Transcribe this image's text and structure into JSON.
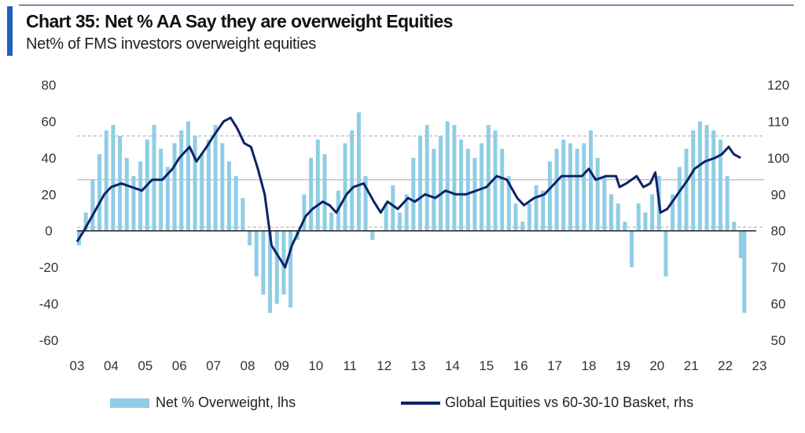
{
  "header": {
    "title": "Chart 35: Net % AA Say they are overweight Equities",
    "subtitle": "Net% of FMS investors overweight equities"
  },
  "colors": {
    "accent": "#1f5fbf",
    "bars": "#8fcde6",
    "line": "#0c2367",
    "grid": "#aaaaaa",
    "axis": "#222222"
  },
  "chart_data": {
    "type": "bar+line",
    "title": "Chart 35: Net % AA Say they are overweight Equities",
    "subtitle": "Net% of FMS investors overweight equities",
    "x_labels": [
      "03",
      "04",
      "05",
      "06",
      "07",
      "08",
      "09",
      "10",
      "11",
      "12",
      "13",
      "14",
      "15",
      "16",
      "17",
      "18",
      "19",
      "20",
      "21",
      "22",
      "23"
    ],
    "x_start_year": 2003,
    "y_left": {
      "min": -60,
      "max": 80,
      "ticks": [
        "80",
        "60",
        "40",
        "20",
        "0",
        "-20",
        "-40",
        "-60"
      ],
      "label": "lhs"
    },
    "y_right": {
      "min": 50,
      "max": 120,
      "ticks": [
        "120",
        "110",
        "100",
        "90",
        "80",
        "70",
        "60",
        "50"
      ],
      "label": "rhs"
    },
    "reference_lines_lhs": [
      {
        "value": 52,
        "style": "dashed"
      },
      {
        "value": 28,
        "style": "solid"
      },
      {
        "value": 2,
        "style": "dashed"
      }
    ],
    "series": [
      {
        "name": "Net % Overweight, lhs",
        "type": "bar",
        "axis": "left",
        "points": [
          [
            2003.0,
            -8
          ],
          [
            2003.2,
            10
          ],
          [
            2003.4,
            28
          ],
          [
            2003.6,
            42
          ],
          [
            2003.8,
            55
          ],
          [
            2004.0,
            58
          ],
          [
            2004.2,
            52
          ],
          [
            2004.4,
            40
          ],
          [
            2004.6,
            30
          ],
          [
            2004.8,
            38
          ],
          [
            2005.0,
            50
          ],
          [
            2005.2,
            58
          ],
          [
            2005.4,
            45
          ],
          [
            2005.6,
            35
          ],
          [
            2005.8,
            48
          ],
          [
            2006.0,
            55
          ],
          [
            2006.2,
            60
          ],
          [
            2006.4,
            52
          ],
          [
            2006.6,
            42
          ],
          [
            2006.8,
            50
          ],
          [
            2007.0,
            58
          ],
          [
            2007.2,
            48
          ],
          [
            2007.4,
            38
          ],
          [
            2007.6,
            30
          ],
          [
            2007.8,
            18
          ],
          [
            2008.0,
            -8
          ],
          [
            2008.2,
            -25
          ],
          [
            2008.4,
            -35
          ],
          [
            2008.6,
            -45
          ],
          [
            2008.8,
            -40
          ],
          [
            2009.0,
            -35
          ],
          [
            2009.2,
            -42
          ],
          [
            2009.4,
            -5
          ],
          [
            2009.6,
            20
          ],
          [
            2009.8,
            40
          ],
          [
            2010.0,
            50
          ],
          [
            2010.2,
            42
          ],
          [
            2010.4,
            10
          ],
          [
            2010.6,
            22
          ],
          [
            2010.8,
            48
          ],
          [
            2011.0,
            55
          ],
          [
            2011.2,
            65
          ],
          [
            2011.4,
            30
          ],
          [
            2011.6,
            -5
          ],
          [
            2011.8,
            0
          ],
          [
            2012.0,
            15
          ],
          [
            2012.2,
            25
          ],
          [
            2012.4,
            10
          ],
          [
            2012.6,
            20
          ],
          [
            2012.8,
            40
          ],
          [
            2013.0,
            52
          ],
          [
            2013.2,
            58
          ],
          [
            2013.4,
            45
          ],
          [
            2013.6,
            52
          ],
          [
            2013.8,
            60
          ],
          [
            2014.0,
            58
          ],
          [
            2014.2,
            50
          ],
          [
            2014.4,
            45
          ],
          [
            2014.6,
            40
          ],
          [
            2014.8,
            48
          ],
          [
            2015.0,
            58
          ],
          [
            2015.2,
            55
          ],
          [
            2015.4,
            45
          ],
          [
            2015.6,
            30
          ],
          [
            2015.8,
            15
          ],
          [
            2016.0,
            5
          ],
          [
            2016.2,
            15
          ],
          [
            2016.4,
            25
          ],
          [
            2016.6,
            22
          ],
          [
            2016.8,
            38
          ],
          [
            2017.0,
            45
          ],
          [
            2017.2,
            50
          ],
          [
            2017.4,
            48
          ],
          [
            2017.6,
            45
          ],
          [
            2017.8,
            48
          ],
          [
            2018.0,
            55
          ],
          [
            2018.2,
            40
          ],
          [
            2018.4,
            30
          ],
          [
            2018.6,
            20
          ],
          [
            2018.8,
            15
          ],
          [
            2019.0,
            5
          ],
          [
            2019.2,
            -20
          ],
          [
            2019.4,
            15
          ],
          [
            2019.6,
            10
          ],
          [
            2019.8,
            20
          ],
          [
            2020.0,
            30
          ],
          [
            2020.2,
            -25
          ],
          [
            2020.4,
            20
          ],
          [
            2020.6,
            35
          ],
          [
            2020.8,
            45
          ],
          [
            2021.0,
            55
          ],
          [
            2021.2,
            60
          ],
          [
            2021.4,
            58
          ],
          [
            2021.6,
            55
          ],
          [
            2021.8,
            50
          ],
          [
            2022.0,
            30
          ],
          [
            2022.2,
            5
          ],
          [
            2022.4,
            -15
          ],
          [
            2022.5,
            -45
          ]
        ]
      },
      {
        "name": "Global Equities vs 60-30-10 Basket, rhs",
        "type": "line",
        "axis": "right",
        "points": [
          [
            2003.0,
            77
          ],
          [
            2003.2,
            80
          ],
          [
            2003.5,
            85
          ],
          [
            2003.8,
            90
          ],
          [
            2004.0,
            92
          ],
          [
            2004.3,
            93
          ],
          [
            2004.6,
            92
          ],
          [
            2004.9,
            91
          ],
          [
            2005.2,
            94
          ],
          [
            2005.5,
            94
          ],
          [
            2005.8,
            97
          ],
          [
            2006.0,
            100
          ],
          [
            2006.3,
            103
          ],
          [
            2006.5,
            99
          ],
          [
            2006.8,
            103
          ],
          [
            2007.0,
            106
          ],
          [
            2007.3,
            110
          ],
          [
            2007.5,
            111
          ],
          [
            2007.7,
            108
          ],
          [
            2007.9,
            104
          ],
          [
            2008.1,
            103
          ],
          [
            2008.3,
            97
          ],
          [
            2008.5,
            90
          ],
          [
            2008.7,
            76
          ],
          [
            2008.9,
            73
          ],
          [
            2009.1,
            70
          ],
          [
            2009.3,
            76
          ],
          [
            2009.5,
            80
          ],
          [
            2009.7,
            84
          ],
          [
            2009.9,
            86
          ],
          [
            2010.2,
            88
          ],
          [
            2010.4,
            87
          ],
          [
            2010.6,
            85
          ],
          [
            2010.9,
            90
          ],
          [
            2011.1,
            92
          ],
          [
            2011.4,
            93
          ],
          [
            2011.7,
            88
          ],
          [
            2011.9,
            85
          ],
          [
            2012.1,
            88
          ],
          [
            2012.4,
            86
          ],
          [
            2012.7,
            89
          ],
          [
            2012.9,
            88
          ],
          [
            2013.2,
            90
          ],
          [
            2013.5,
            89
          ],
          [
            2013.8,
            91
          ],
          [
            2014.1,
            90
          ],
          [
            2014.4,
            90
          ],
          [
            2014.7,
            91
          ],
          [
            2015.0,
            92
          ],
          [
            2015.3,
            95
          ],
          [
            2015.6,
            94
          ],
          [
            2015.9,
            89
          ],
          [
            2016.1,
            87
          ],
          [
            2016.4,
            89
          ],
          [
            2016.7,
            90
          ],
          [
            2016.9,
            92
          ],
          [
            2017.2,
            95
          ],
          [
            2017.5,
            95
          ],
          [
            2017.8,
            95
          ],
          [
            2018.0,
            97
          ],
          [
            2018.2,
            94
          ],
          [
            2018.5,
            95
          ],
          [
            2018.8,
            95
          ],
          [
            2018.9,
            92
          ],
          [
            2019.1,
            93
          ],
          [
            2019.4,
            95
          ],
          [
            2019.6,
            92
          ],
          [
            2019.8,
            93
          ],
          [
            2019.95,
            96
          ],
          [
            2020.1,
            85
          ],
          [
            2020.3,
            86
          ],
          [
            2020.6,
            90
          ],
          [
            2020.9,
            94
          ],
          [
            2021.1,
            97
          ],
          [
            2021.4,
            99
          ],
          [
            2021.7,
            100
          ],
          [
            2021.9,
            101
          ],
          [
            2022.1,
            103
          ],
          [
            2022.25,
            101
          ],
          [
            2022.45,
            100
          ]
        ]
      }
    ],
    "legend": "bottom"
  },
  "legend": {
    "bars_label": "Net % Overweight, lhs",
    "line_label": "Global Equities vs 60-30-10 Basket, rhs"
  }
}
